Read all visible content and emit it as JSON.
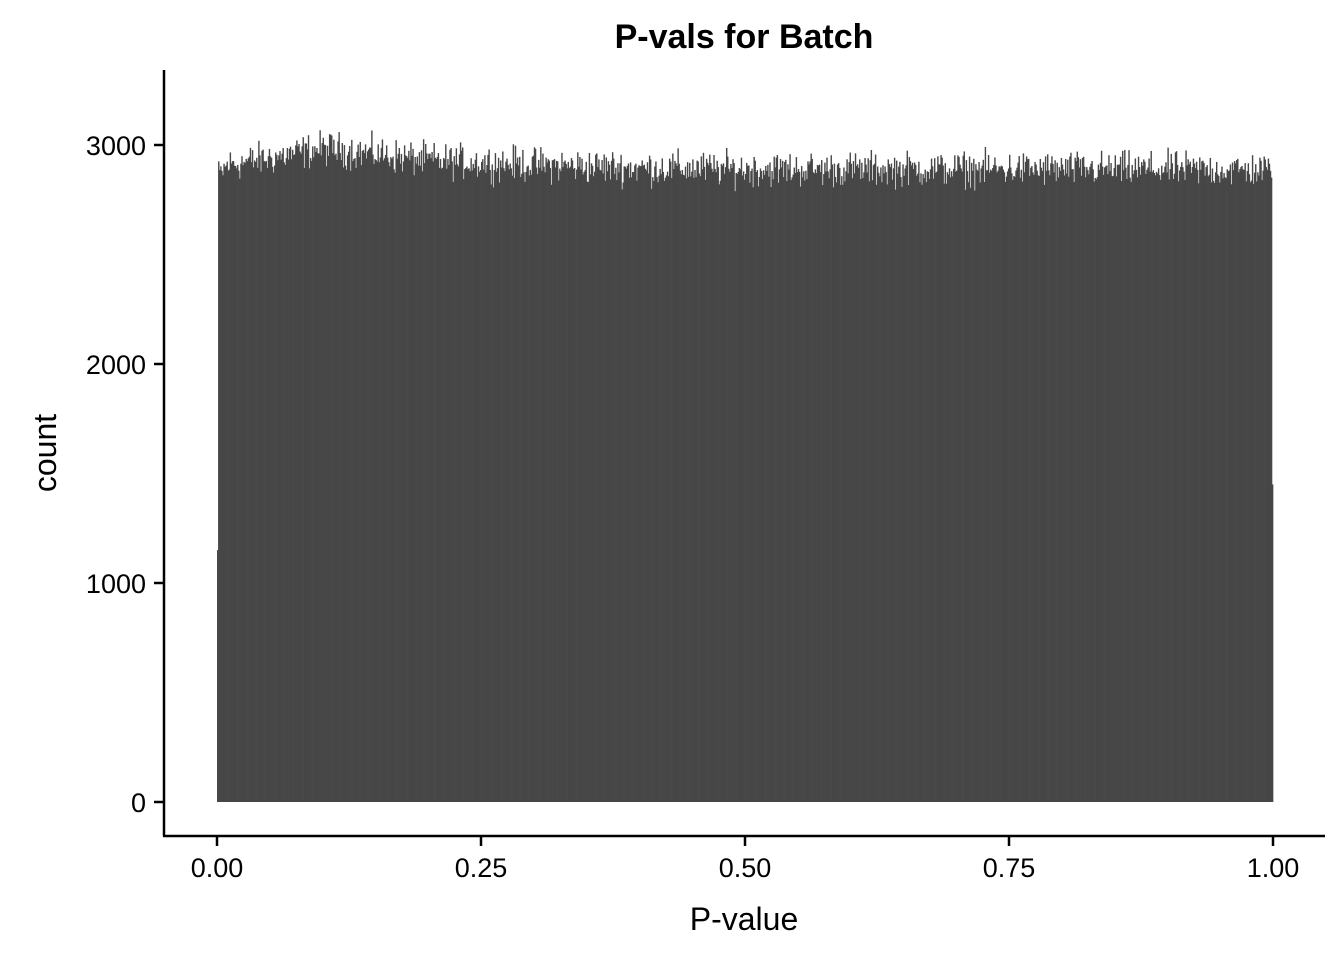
{
  "chart_data": {
    "type": "bar",
    "title": "P-vals for Batch",
    "xlabel": "P-value",
    "ylabel": "count",
    "xlim": [
      0,
      1
    ],
    "ylim": [
      0,
      3250
    ],
    "x_ticks": [
      0,
      0.25,
      0.5,
      0.75,
      1.0
    ],
    "x_tick_labels": [
      "0.00",
      "0.25",
      "0.50",
      "0.75",
      "1.00"
    ],
    "y_ticks": [
      0,
      1000,
      2000,
      3000
    ],
    "y_tick_labels": [
      "0",
      "1000",
      "2000",
      "3000"
    ],
    "grid": false,
    "legend": "none",
    "bar_color": "#474747",
    "histogram": {
      "bin_width": 0.001,
      "x_range": [
        0,
        1
      ],
      "first_bin_count": 1150,
      "last_bin_count": 1450,
      "profile": [
        {
          "x": 0.0,
          "count": 2850
        },
        {
          "x": 0.01,
          "count": 2910
        },
        {
          "x": 0.05,
          "count": 2940
        },
        {
          "x": 0.1,
          "count": 2985
        },
        {
          "x": 0.15,
          "count": 2960
        },
        {
          "x": 0.2,
          "count": 2930
        },
        {
          "x": 0.3,
          "count": 2910
        },
        {
          "x": 0.4,
          "count": 2895
        },
        {
          "x": 0.5,
          "count": 2890
        },
        {
          "x": 0.6,
          "count": 2890
        },
        {
          "x": 0.7,
          "count": 2890
        },
        {
          "x": 0.8,
          "count": 2890
        },
        {
          "x": 0.9,
          "count": 2890
        },
        {
          "x": 1.0,
          "count": 2885
        }
      ],
      "noise_amplitude": 60,
      "peak_count": 3170,
      "peak_x": 0.1,
      "min_count_interior": 2750
    }
  }
}
